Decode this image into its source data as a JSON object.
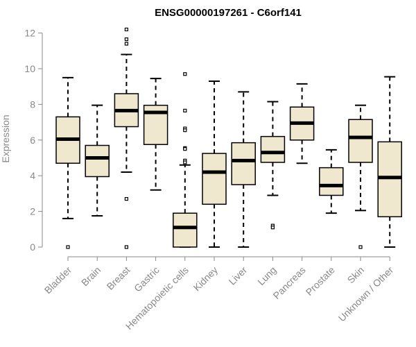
{
  "chart_data": {
    "type": "box",
    "title": "ENSG00000197261 - C6orf141",
    "ylabel": "Expression",
    "xlabel": "",
    "ylim": [
      0,
      12.3
    ],
    "yticks": [
      0,
      2,
      4,
      6,
      8,
      10,
      12
    ],
    "box_fill": "#efe8cf",
    "categories": [
      "Bladder",
      "Brain",
      "Breast",
      "Gastric",
      "Hematopoietic cells",
      "Kidney",
      "Liver",
      "Lung",
      "Pancreas",
      "Prostate",
      "Skin",
      "Unknown / Other"
    ],
    "boxes": [
      {
        "min": 1.6,
        "q1": 4.7,
        "median": 6.05,
        "q3": 7.3,
        "max": 9.5,
        "outliers": [
          0.0
        ]
      },
      {
        "min": 1.75,
        "q1": 3.95,
        "median": 5.0,
        "q3": 5.7,
        "max": 7.95,
        "outliers": []
      },
      {
        "min": 4.2,
        "q1": 6.75,
        "median": 7.65,
        "q3": 8.6,
        "max": 10.8,
        "outliers": [
          12.2,
          11.65,
          11.4,
          2.7,
          0.0
        ]
      },
      {
        "min": 3.2,
        "q1": 5.75,
        "median": 7.55,
        "q3": 7.95,
        "max": 9.45,
        "outliers": []
      },
      {
        "min": 0.0,
        "q1": 0.0,
        "median": 1.1,
        "q3": 1.9,
        "max": 4.6,
        "outliers": [
          9.7,
          7.65,
          6.65,
          6.55,
          5.55,
          5.5,
          4.85,
          4.75
        ]
      },
      {
        "min": 0.0,
        "q1": 2.4,
        "median": 4.2,
        "q3": 5.25,
        "max": 9.3,
        "outliers": []
      },
      {
        "min": 0.0,
        "q1": 3.5,
        "median": 4.85,
        "q3": 5.85,
        "max": 8.7,
        "outliers": []
      },
      {
        "min": 2.9,
        "q1": 4.75,
        "median": 5.3,
        "q3": 6.2,
        "max": 8.15,
        "outliers": [
          1.2,
          1.1
        ]
      },
      {
        "min": 4.7,
        "q1": 6.0,
        "median": 6.95,
        "q3": 7.85,
        "max": 9.15,
        "outliers": []
      },
      {
        "min": 1.9,
        "q1": 2.9,
        "median": 3.45,
        "q3": 4.45,
        "max": 5.45,
        "outliers": []
      },
      {
        "min": 2.05,
        "q1": 4.75,
        "median": 6.15,
        "q3": 7.15,
        "max": 7.95,
        "outliers": [
          0.0
        ]
      },
      {
        "min": 0.0,
        "q1": 1.7,
        "median": 3.9,
        "q3": 5.9,
        "max": 9.55,
        "outliers": []
      }
    ]
  }
}
